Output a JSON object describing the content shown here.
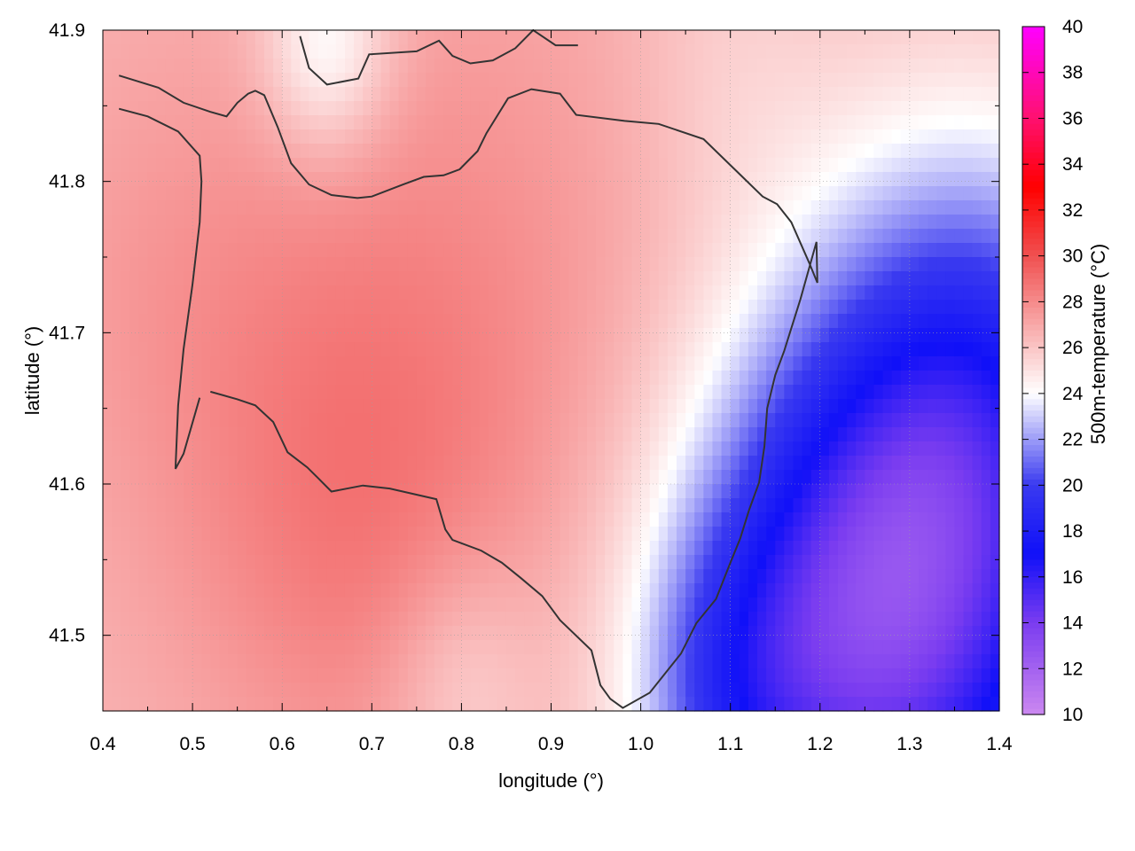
{
  "chart_data": {
    "type": "heatmap",
    "title": "",
    "xlabel": "longitude (°)",
    "ylabel": "latitude (°)",
    "colorbar_label": "500m-temperature (°C)",
    "xlim": [
      0.4,
      1.4
    ],
    "ylim": [
      41.45,
      41.9
    ],
    "clim": [
      10,
      40
    ],
    "x_ticks": [
      "0.4",
      "0.5",
      "0.6",
      "0.7",
      "0.8",
      "0.9",
      "1.0",
      "1.1",
      "1.2",
      "1.3",
      "1.4"
    ],
    "y_ticks": [
      "41.5",
      "41.6",
      "41.7",
      "41.8",
      "41.9"
    ],
    "colorbar_ticks": [
      "10",
      "12",
      "14",
      "16",
      "18",
      "20",
      "22",
      "24",
      "26",
      "28",
      "30",
      "32",
      "34",
      "36",
      "38",
      "40"
    ],
    "grid": true,
    "colormap": [
      {
        "value": 10,
        "color": "#cc88f0"
      },
      {
        "value": 14,
        "color": "#7a3cf0"
      },
      {
        "value": 17,
        "color": "#1010f8"
      },
      {
        "value": 20,
        "color": "#3a3af0"
      },
      {
        "value": 24,
        "color": "#ffffff"
      },
      {
        "value": 27,
        "color": "#f8a8a8"
      },
      {
        "value": 30,
        "color": "#f05050"
      },
      {
        "value": 33,
        "color": "#ff0000"
      },
      {
        "value": 36,
        "color": "#ff1070"
      },
      {
        "value": 40,
        "color": "#ff00ff"
      }
    ],
    "temperature_field": {
      "description_levels": "approximate field values in °C",
      "base": 26.5,
      "features": [
        {
          "lon": 0.82,
          "lat": 41.72,
          "amp": 1.2,
          "sigma": 0.18
        },
        {
          "lon": 0.62,
          "lat": 41.62,
          "amp": 1.0,
          "sigma": 0.15
        },
        {
          "lon": 0.7,
          "lat": 41.56,
          "amp": 0.8,
          "sigma": 0.12
        },
        {
          "lon": 0.45,
          "lat": 41.75,
          "amp": 0.6,
          "sigma": 0.12
        },
        {
          "lon": 1.3,
          "lat": 41.5,
          "amp": -8.5,
          "sigma": 0.16
        },
        {
          "lon": 1.22,
          "lat": 41.52,
          "amp": -4.0,
          "sigma": 0.12
        },
        {
          "lon": 1.38,
          "lat": 41.66,
          "amp": -5.0,
          "sigma": 0.12
        },
        {
          "lon": 1.1,
          "lat": 41.46,
          "amp": -3.0,
          "sigma": 0.08
        },
        {
          "lon": 0.65,
          "lat": 41.89,
          "amp": -3.0,
          "sigma": 0.05
        },
        {
          "lon": 0.8,
          "lat": 41.47,
          "amp": -1.5,
          "sigma": 0.06
        },
        {
          "lon": 1.1,
          "lat": 41.88,
          "amp": -0.8,
          "sigma": 0.08
        }
      ],
      "gradient": {
        "dlon": -2.0,
        "reference_lon": 1.0
      }
    },
    "contours": [
      {
        "lon": [
          0.418,
          0.462,
          0.49,
          0.52,
          0.538,
          0.55,
          0.562,
          0.57,
          0.58,
          0.595,
          0.61,
          0.63,
          0.655,
          0.684,
          0.7,
          0.735,
          0.758,
          0.78,
          0.798,
          0.818,
          0.828,
          0.852,
          0.878,
          0.91,
          0.928,
          0.982,
          1.02,
          1.07,
          1.11,
          1.136,
          1.152,
          1.168,
          1.188,
          1.197,
          1.196,
          1.178,
          1.16,
          1.15,
          1.141,
          1.138,
          1.132,
          1.121,
          1.111,
          1.1,
          1.084,
          1.062,
          1.045,
          1.01,
          0.98,
          0.966,
          0.955,
          0.945,
          0.91,
          0.89,
          0.866,
          0.845,
          0.822,
          0.79,
          0.782,
          0.772,
          0.72,
          0.69,
          0.655,
          0.64,
          0.628,
          0.606,
          0.59,
          0.57,
          0.55,
          0.52
        ],
        "lat": [
          41.87,
          41.862,
          41.852,
          41.846,
          41.843,
          41.852,
          41.858,
          41.86,
          41.857,
          41.836,
          41.812,
          41.798,
          41.791,
          41.789,
          41.79,
          41.798,
          41.803,
          41.804,
          41.808,
          41.82,
          41.832,
          41.855,
          41.861,
          41.858,
          41.844,
          41.84,
          41.838,
          41.828,
          41.805,
          41.79,
          41.785,
          41.773,
          41.746,
          41.733,
          41.76,
          41.722,
          41.688,
          41.672,
          41.65,
          41.625,
          41.601,
          41.583,
          41.564,
          41.548,
          41.524,
          41.508,
          41.488,
          41.462,
          41.452,
          41.458,
          41.467,
          41.49,
          41.51,
          41.526,
          41.538,
          41.548,
          41.556,
          41.563,
          41.57,
          41.59,
          41.597,
          41.599,
          41.595,
          41.604,
          41.611,
          41.621,
          41.641,
          41.652,
          41.656,
          41.661
        ]
      },
      {
        "lon": [
          0.62,
          0.63,
          0.65,
          0.685,
          0.697,
          0.75,
          0.775,
          0.79,
          0.81,
          0.835,
          0.86,
          0.88,
          0.905,
          0.93
        ],
        "lat": [
          41.896,
          41.875,
          41.864,
          41.868,
          41.884,
          41.886,
          41.893,
          41.883,
          41.878,
          41.88,
          41.888,
          41.9,
          41.89,
          41.89
        ]
      },
      {
        "lon": [
          0.418,
          0.45,
          0.484,
          0.508,
          0.51,
          0.508,
          0.5,
          0.49,
          0.484,
          0.481,
          0.49,
          0.508
        ],
        "lat": [
          41.848,
          41.843,
          41.833,
          41.817,
          41.8,
          41.773,
          41.732,
          41.689,
          41.652,
          41.61,
          41.62,
          41.657
        ]
      }
    ]
  }
}
